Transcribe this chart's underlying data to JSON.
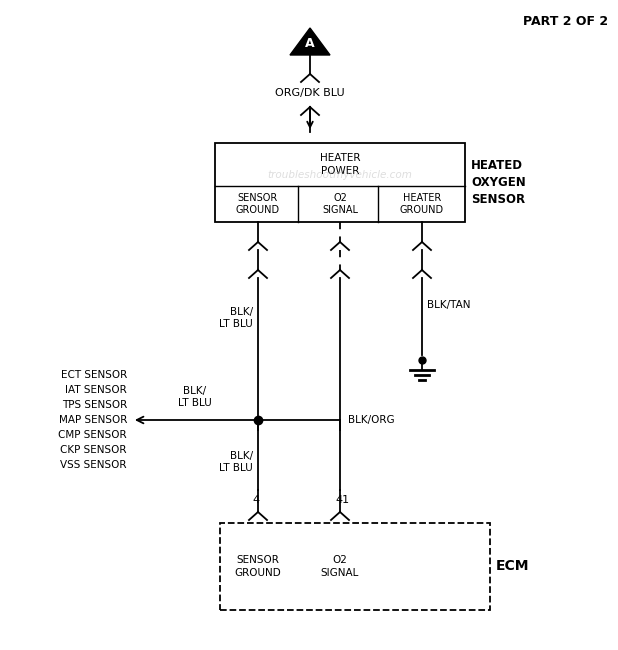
{
  "title": "PART 2 OF 2",
  "watermark": "troubleshootmyvehicle.com",
  "bg_color": "#ffffff",
  "line_color": "#000000",
  "text_color": "#000000",
  "connector_triangle_label": "A",
  "wire_label_top": "ORG/DK BLU",
  "wire_blk_lt_blu_upper": "BLK/\nLT BLU",
  "wire_blk_tan": "BLK/TAN",
  "wire_blk_org": "BLK/ORG",
  "wire_blk_lt_blu_lower": "BLK/\nLT BLU",
  "left_sensors": [
    "ECT SENSOR",
    "IAT SENSOR",
    "TPS SENSOR",
    "MAP SENSOR",
    "CMP SENSOR",
    "CKP SENSOR",
    "VSS SENSOR"
  ],
  "ecm_label": "ECM",
  "pin_labels": [
    "4",
    "41"
  ],
  "figsize": [
    6.18,
    6.5
  ],
  "dpi": 100
}
